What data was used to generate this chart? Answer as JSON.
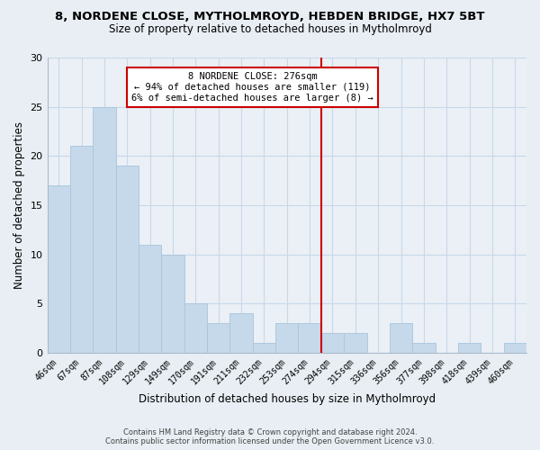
{
  "title_line1": "8, NORDENE CLOSE, MYTHOLMROYD, HEBDEN BRIDGE, HX7 5BT",
  "title_line2": "Size of property relative to detached houses in Mytholmroyd",
  "xlabel": "Distribution of detached houses by size in Mytholmroyd",
  "ylabel": "Number of detached properties",
  "bar_labels": [
    "46sqm",
    "67sqm",
    "87sqm",
    "108sqm",
    "129sqm",
    "149sqm",
    "170sqm",
    "191sqm",
    "211sqm",
    "232sqm",
    "253sqm",
    "274sqm",
    "294sqm",
    "315sqm",
    "336sqm",
    "356sqm",
    "377sqm",
    "398sqm",
    "418sqm",
    "439sqm",
    "460sqm"
  ],
  "bar_values": [
    17,
    21,
    25,
    19,
    11,
    10,
    5,
    3,
    4,
    1,
    3,
    3,
    2,
    2,
    0,
    3,
    1,
    0,
    1,
    0,
    1
  ],
  "bar_color": "#c5d9ea",
  "bar_edge_color": "#a8c4dc",
  "vline_x": 11.5,
  "vline_color": "#cc0000",
  "annotation_title": "8 NORDENE CLOSE: 276sqm",
  "annotation_line1": "← 94% of detached houses are smaller (119)",
  "annotation_line2": "6% of semi-detached houses are larger (8) →",
  "annotation_box_color": "#ffffff",
  "annotation_box_edge": "#cc0000",
  "grid_color": "#c8d8e8",
  "bg_color": "#e8eef4",
  "plot_bg_color": "#eaf0f6",
  "footer_line1": "Contains HM Land Registry data © Crown copyright and database right 2024.",
  "footer_line2": "Contains public sector information licensed under the Open Government Licence v3.0.",
  "ylim": [
    0,
    30
  ],
  "yticks": [
    0,
    5,
    10,
    15,
    20,
    25,
    30
  ]
}
